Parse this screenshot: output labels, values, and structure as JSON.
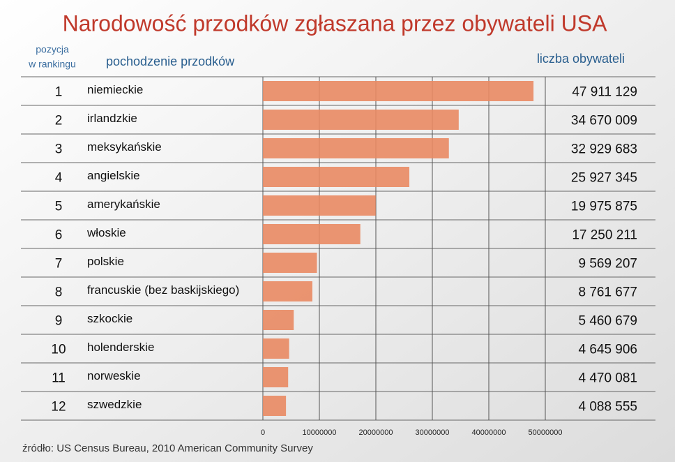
{
  "chart_data": {
    "type": "bar",
    "orientation": "horizontal",
    "title": "Narodowość przodków zgłaszana przez obywateli USA",
    "rank_header": [
      "pozycja",
      "w rankingu"
    ],
    "category_header": "pochodzenie przodków",
    "value_header": "liczba obywateli",
    "source": "źródło: US Census Bureau, 2010 American Community Survey",
    "ranks": [
      1,
      2,
      3,
      4,
      5,
      6,
      7,
      8,
      9,
      10,
      11,
      12
    ],
    "categories": [
      "niemieckie",
      "irlandzkie",
      "meksykańskie",
      "angielskie",
      "amerykańskie",
      "włoskie",
      "polskie",
      "francuskie (bez baskijskiego)",
      "szkockie",
      "holenderskie",
      "norweskie",
      "szwedzkie"
    ],
    "values": [
      47911129,
      34670009,
      32929683,
      25927345,
      19975875,
      17250211,
      9569207,
      8761677,
      5460679,
      4645906,
      4470081,
      4088555
    ],
    "value_labels": [
      "47 911 129",
      "34 670 009",
      "32 929 683",
      "25 927 345",
      "19 975 875",
      "17 250 211",
      "9 569 207",
      "8 761 677",
      "5 460 679",
      "4 645 906",
      "4 470 081",
      "4 088 555"
    ],
    "color": "#e98a63",
    "xlim": [
      0,
      50000000
    ],
    "xticks": [
      0,
      10000000,
      20000000,
      30000000,
      40000000,
      50000000
    ],
    "grid": true
  }
}
